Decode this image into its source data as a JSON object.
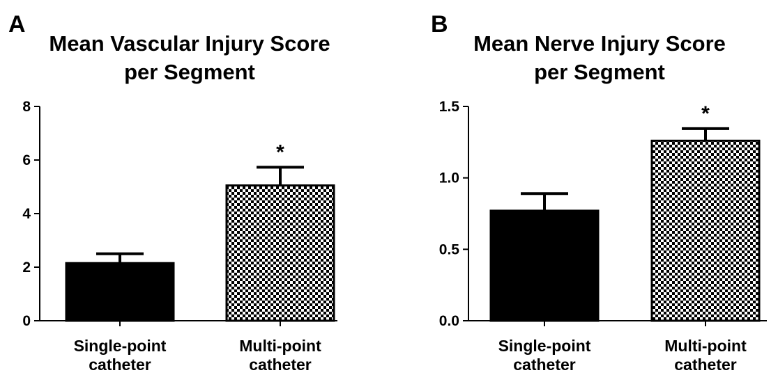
{
  "chart_data": [
    {
      "type": "bar",
      "panel_label": "A",
      "title_lines": [
        "Mean Vascular Injury Score",
        "per Segment"
      ],
      "categories": [
        {
          "lines": [
            "Single-point",
            "catheter"
          ],
          "value": 2.15,
          "error": 0.35,
          "fill": "solid",
          "annotation": ""
        },
        {
          "lines": [
            "Multi-point",
            "catheter"
          ],
          "value": 5.05,
          "error": 0.68,
          "fill": "checker",
          "annotation": "*"
        }
      ],
      "ylim": [
        0,
        8
      ],
      "yticks": [
        "0",
        "2",
        "4",
        "6",
        "8"
      ],
      "xlabel": "",
      "ylabel": "",
      "grid": false
    },
    {
      "type": "bar",
      "panel_label": "B",
      "title_lines": [
        "Mean Nerve Injury Score",
        "per Segment"
      ],
      "categories": [
        {
          "lines": [
            "Single-point",
            "catheter"
          ],
          "value": 0.77,
          "error": 0.12,
          "fill": "solid",
          "annotation": ""
        },
        {
          "lines": [
            "Multi-point",
            "catheter"
          ],
          "value": 1.26,
          "error": 0.085,
          "fill": "checker",
          "annotation": "*"
        }
      ],
      "ylim": [
        0,
        1.5
      ],
      "yticks": [
        "0.0",
        "0.5",
        "1.0",
        "1.5"
      ],
      "xlabel": "",
      "ylabel": "",
      "grid": false
    }
  ],
  "colors": {
    "bar": "#000000",
    "axis": "#000000",
    "background": "#ffffff"
  }
}
